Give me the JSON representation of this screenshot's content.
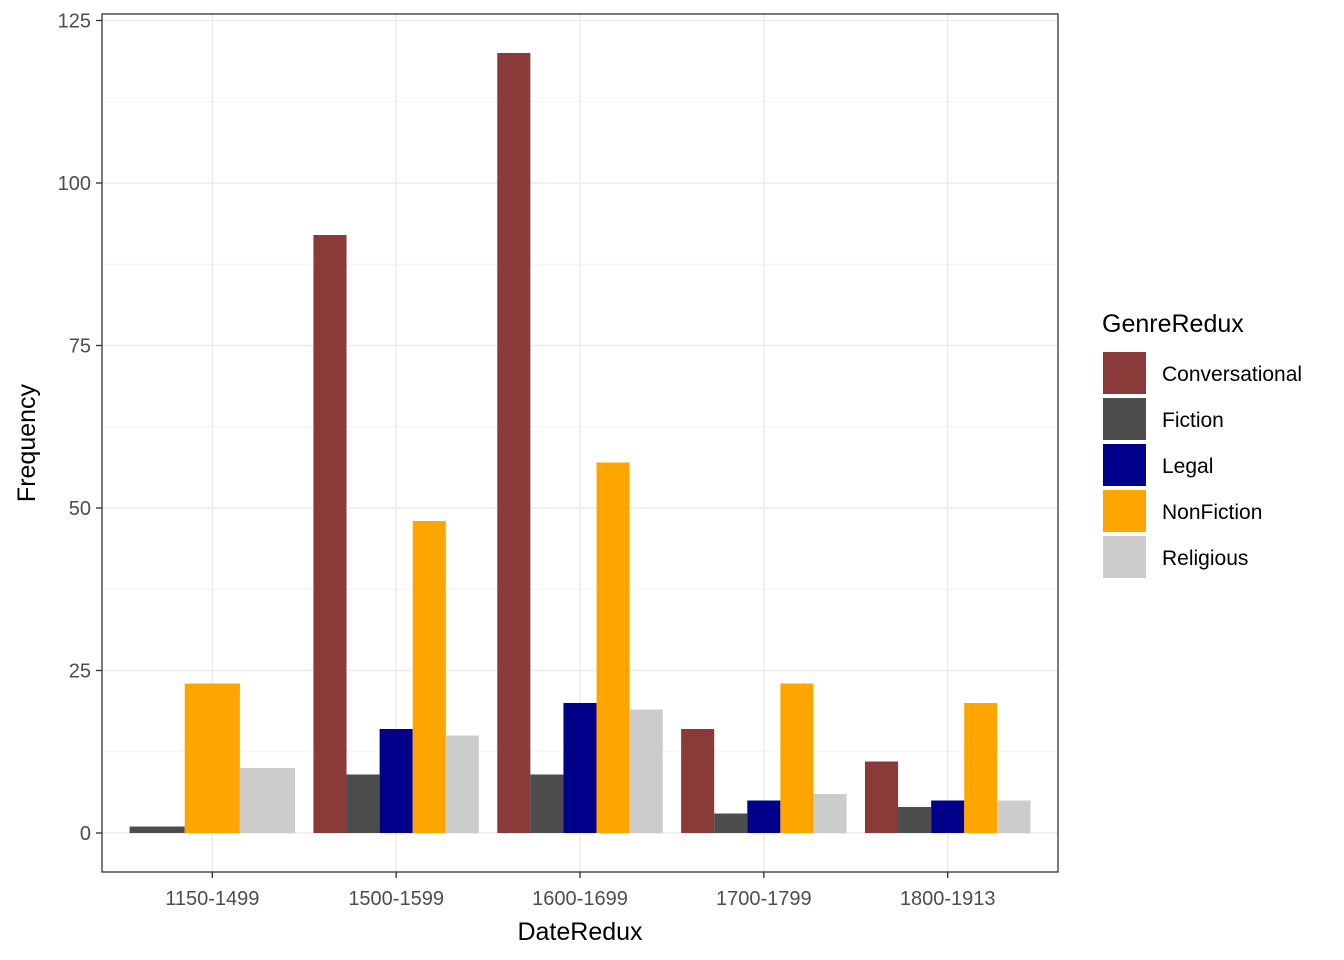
{
  "chart_data": {
    "type": "bar",
    "xlabel": "DateRedux",
    "ylabel": "Frequency",
    "ylim": [
      -6,
      126
    ],
    "yticks": [
      0,
      25,
      50,
      75,
      100,
      125
    ],
    "grid": true,
    "legend": {
      "title": "GenreRedux",
      "position": "right"
    },
    "categories": [
      "1150-1499",
      "1500-1599",
      "1600-1699",
      "1700-1799",
      "1800-1913"
    ],
    "series": [
      {
        "name": "Conversational",
        "color": "#8B3A3A",
        "values": [
          null,
          92,
          120,
          16,
          11
        ]
      },
      {
        "name": "Fiction",
        "color": "#4D4D4D",
        "values": [
          1,
          9,
          9,
          3,
          4
        ]
      },
      {
        "name": "Legal",
        "color": "#00008B",
        "values": [
          null,
          16,
          20,
          5,
          5
        ]
      },
      {
        "name": "NonFiction",
        "color": "#FFA500",
        "values": [
          23,
          48,
          57,
          23,
          20
        ]
      },
      {
        "name": "Religious",
        "color": "#CCCCCC",
        "values": [
          10,
          15,
          19,
          6,
          5
        ]
      }
    ]
  }
}
